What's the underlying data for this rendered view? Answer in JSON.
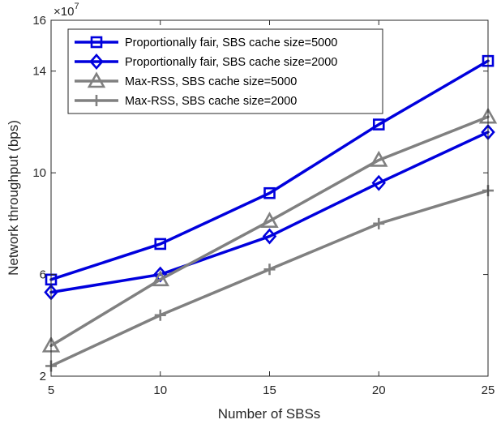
{
  "chart_data": {
    "type": "line",
    "title": "",
    "xlabel": "Number of SBSs",
    "ylabel": "Network throughput (bps)",
    "x": [
      5,
      10,
      15,
      20,
      25
    ],
    "xlim": [
      5,
      25
    ],
    "ylim": [
      2,
      16
    ],
    "y_scale_exponent": 7,
    "y_exponent_label_base": "×10",
    "y_exponent_label_power": "7",
    "x_ticks": [
      5,
      10,
      15,
      20,
      25
    ],
    "y_ticks": [
      2,
      6,
      10,
      14,
      16
    ],
    "grid": false,
    "legend_position": "top-left",
    "series": [
      {
        "name": "Proportionally fair, SBS cache size=5000",
        "values": [
          5.8,
          7.2,
          9.2,
          11.9,
          14.4
        ],
        "color": "#0000dd",
        "marker": "square"
      },
      {
        "name": "Proportionally fair, SBS cache size=2000",
        "values": [
          5.3,
          6.0,
          7.5,
          9.6,
          11.6
        ],
        "color": "#0000dd",
        "marker": "diamond"
      },
      {
        "name": "Max-RSS, SBS cache size=5000",
        "values": [
          3.2,
          5.8,
          8.1,
          10.5,
          12.2
        ],
        "color": "#808080",
        "marker": "triangle"
      },
      {
        "name": "Max-RSS, SBS cache size=2000",
        "values": [
          2.4,
          4.4,
          6.2,
          8.0,
          9.3
        ],
        "color": "#808080",
        "marker": "plus"
      }
    ]
  }
}
